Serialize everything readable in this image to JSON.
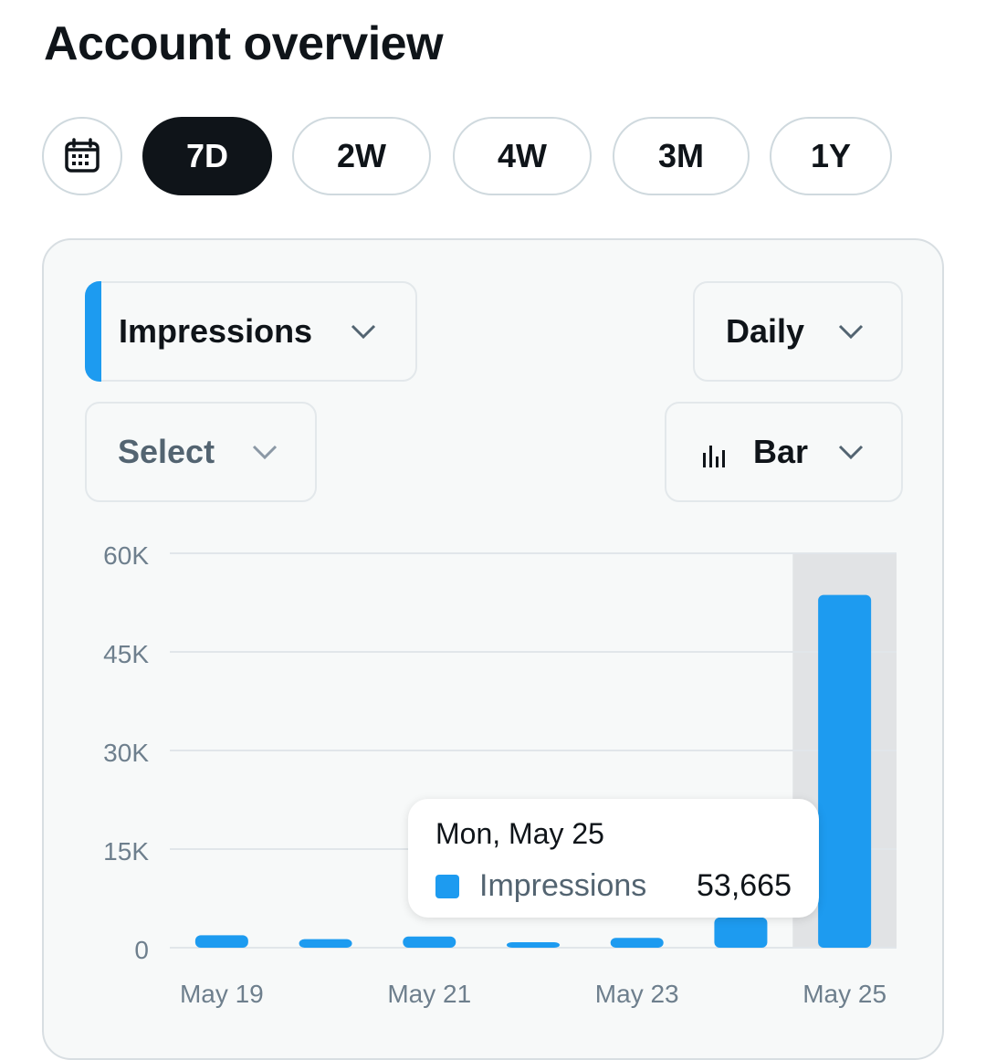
{
  "header": {
    "title": "Account overview"
  },
  "range_tabs": {
    "calendar_icon": "calendar-icon",
    "items": [
      {
        "label": "7D",
        "active": true
      },
      {
        "label": "2W",
        "active": false
      },
      {
        "label": "4W",
        "active": false
      },
      {
        "label": "3M",
        "active": false
      },
      {
        "label": "1Y",
        "active": false
      }
    ]
  },
  "controls": {
    "metric": {
      "label": "Impressions",
      "accent": "#1d9bf0"
    },
    "interval": {
      "label": "Daily"
    },
    "compare": {
      "label": "Select"
    },
    "chart_type": {
      "label": "Bar",
      "icon": "bar-chart-icon"
    }
  },
  "tooltip": {
    "date": "Mon, May 25",
    "series_label": "Impressions",
    "value": "53,665"
  },
  "colors": {
    "accent": "#1d9bf0",
    "highlight": "#e1e3e5",
    "grid": "#e1e6ea",
    "axis_text": "#6e7f8d"
  },
  "chart_data": {
    "type": "bar",
    "categories": [
      "May 19",
      "May 20",
      "May 21",
      "May 22",
      "May 23",
      "May 24",
      "May 25"
    ],
    "x_tick_labels": [
      "May 19",
      "",
      "May 21",
      "",
      "May 23",
      "",
      "May 25"
    ],
    "series": [
      {
        "name": "Impressions",
        "values": [
          1900,
          1300,
          1700,
          600,
          1500,
          4600,
          53665
        ]
      }
    ],
    "y_ticks": [
      0,
      15000,
      30000,
      45000,
      60000
    ],
    "y_tick_labels": [
      "0",
      "15K",
      "30K",
      "45K",
      "60K"
    ],
    "ylim": [
      0,
      60000
    ],
    "highlighted_category": "May 25",
    "grid": true
  }
}
